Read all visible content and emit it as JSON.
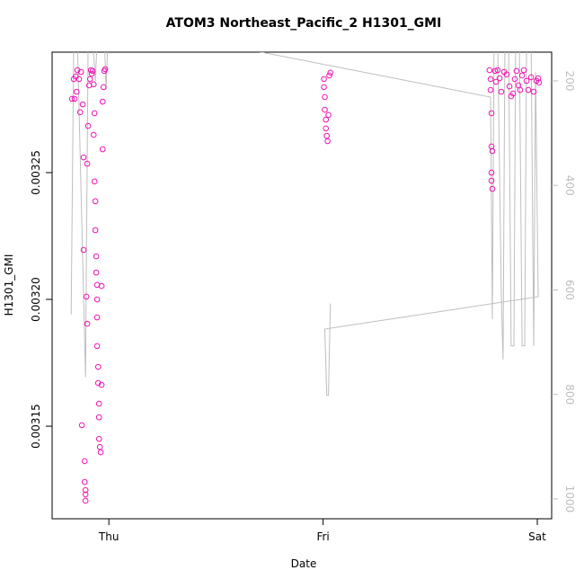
{
  "chart_data": {
    "type": "scatter",
    "title": "ATOM3 Northeast_Pacific_2 H1301_GMI",
    "xlabel": "Date",
    "ylabel": "H1301_GMI",
    "xlim": [
      -0.265,
      2.067
    ],
    "xticks": [
      {
        "value": 0,
        "label": "Thu"
      },
      {
        "value": 1,
        "label": "Fri"
      },
      {
        "value": 2,
        "label": "Sat"
      }
    ],
    "ylim": [
      0.0031135,
      0.0032975
    ],
    "yticks": [
      0.00315,
      {
        "value": 0.0032,
        "label": "0.00320"
      },
      0.00325
    ],
    "y2lim": [
      1038,
      145
    ],
    "y2ticks": [
      200,
      400,
      600,
      800,
      1000
    ],
    "y2color": "#bebebe",
    "series": [
      {
        "color": "#f014b4",
        "marker": "circle",
        "x": [
          -0.172,
          -0.164,
          -0.155,
          -0.147,
          -0.139,
          -0.13,
          -0.122,
          -0.118,
          -0.118,
          -0.113,
          -0.109,
          -0.109,
          -0.105,
          -0.101,
          -0.097,
          -0.092,
          -0.088,
          -0.084,
          -0.08,
          -0.076,
          -0.071,
          -0.071,
          -0.067,
          -0.067,
          -0.063,
          -0.063,
          -0.059,
          -0.059,
          -0.055,
          -0.055,
          -0.055,
          -0.055,
          -0.05,
          -0.05,
          -0.046,
          -0.046,
          -0.046,
          -0.042,
          -0.038,
          -0.034,
          -0.034,
          -0.029,
          -0.029,
          -0.025,
          -0.021,
          -0.017,
          -0.16,
          -0.151,
          -0.134,
          -0.126,
          -0.113,
          -0.109,
          -0.101,
          1.004,
          1.004,
          1.008,
          1.008,
          1.013,
          1.013,
          1.017,
          1.021,
          1.025,
          1.029,
          1.034,
          1.777,
          1.782,
          1.782,
          1.786,
          1.786,
          1.79,
          1.786,
          1.786,
          1.79,
          1.803,
          1.807,
          1.815,
          1.824,
          1.832,
          1.845,
          1.857,
          1.87,
          1.878,
          1.887,
          1.895,
          1.903,
          1.912,
          1.92,
          1.929,
          1.937,
          1.95,
          1.958,
          1.971,
          1.983,
          1.996,
          2.004,
          2.008
        ],
        "values": [
          0.0032791,
          0.0032869,
          0.0032879,
          0.0032904,
          0.0032869,
          0.0032897,
          0.0032769,
          0.003256,
          0.0032195,
          0.0031362,
          0.0031231,
          0.0031206,
          0.0032011,
          0.0032535,
          0.0032684,
          0.0032844,
          0.0032869,
          0.0032904,
          0.003289,
          0.0032901,
          0.0032848,
          0.0032649,
          0.0032734,
          0.0032465,
          0.0032387,
          0.0032273,
          0.003217,
          0.0032106,
          0.0032057,
          0.0032,
          0.0031929,
          0.0031816,
          0.0031734,
          0.003167,
          0.0031589,
          0.0031535,
          0.003145,
          0.0031418,
          0.0031397,
          0.0031663,
          0.0032053,
          0.0032592,
          0.003278,
          0.0032837,
          0.0032901,
          0.0032908,
          0.0032791,
          0.0032819,
          0.0032738,
          0.0031504,
          0.003128,
          0.0031248,
          0.0031904,
          0.0032869,
          0.0032837,
          0.0032798,
          0.0032748,
          0.0032709,
          0.0032674,
          0.0032645,
          0.0032624,
          0.0032727,
          0.0032883,
          0.0032894,
          0.0032904,
          0.0032869,
          0.0032826,
          0.0032734,
          0.0032603,
          0.0032585,
          0.00325,
          0.0032468,
          0.0032436,
          0.0032901,
          0.0032858,
          0.0032904,
          0.0032872,
          0.0032819,
          0.0032897,
          0.0032887,
          0.003284,
          0.0032801,
          0.0032812,
          0.0032869,
          0.0032901,
          0.0032844,
          0.0032826,
          0.0032883,
          0.0032904,
          0.0032862,
          0.0032826,
          0.0032876,
          0.0032819,
          0.0032862,
          0.0032872,
          0.0032855
        ]
      },
      {
        "color": "#bebebe",
        "marker": "line",
        "axis": "y2",
        "x": [
          -0.176,
          -0.164,
          -0.147,
          -0.109,
          -0.097,
          -0.076,
          -0.063,
          -0.055,
          -0.021,
          -0.013,
          -0.004,
          0.017,
          1.782,
          1.79,
          1.798,
          1.815,
          1.832,
          1.84,
          1.849,
          1.866,
          1.878,
          1.891,
          1.899,
          1.916,
          1.929,
          1.941,
          1.95,
          1.971,
          1.983,
          1.992,
          2.004,
          1.008,
          1.017,
          1.025,
          1.034
        ],
        "values": [
          647,
          120,
          120,
          767,
          120,
          120,
          200,
          120,
          120,
          217,
          120,
          89,
          231,
          656,
          120,
          120,
          613,
          733,
          120,
          120,
          707,
          707,
          120,
          120,
          707,
          707,
          120,
          120,
          707,
          183,
          613,
          675,
          802,
          802,
          626
        ]
      }
    ]
  }
}
